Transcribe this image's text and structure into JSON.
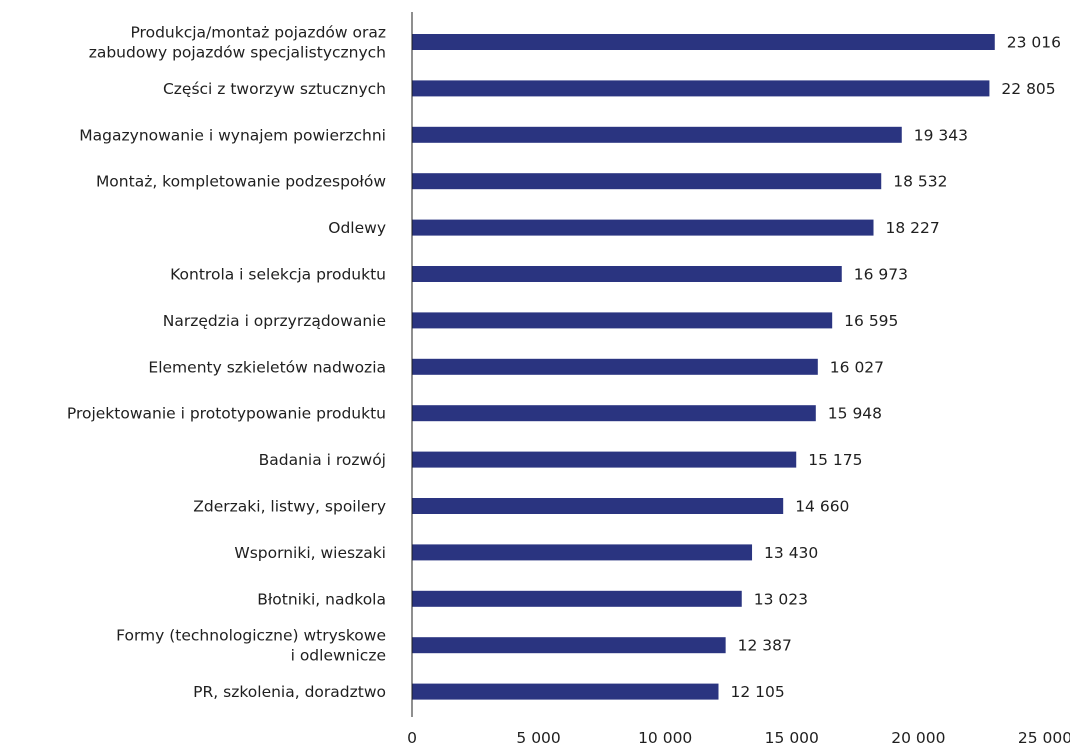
{
  "chart_data": {
    "type": "bar",
    "orientation": "horizontal",
    "categories": [
      [
        "Produkcja/montaż pojazdów oraz",
        "zabudowy pojazdów specjalistycznych"
      ],
      [
        "Części z tworzyw sztucznych"
      ],
      [
        "Magazynowanie i wynajem powierzchni"
      ],
      [
        "Montaż, kompletowanie podzespołów"
      ],
      [
        "Odlewy"
      ],
      [
        "Kontrola i selekcja produktu"
      ],
      [
        "Narzędzia i oprzyrządowanie"
      ],
      [
        "Elementy szkieletów nadwozia"
      ],
      [
        "Projektowanie i prototypowanie produktu"
      ],
      [
        "Badania i rozwój"
      ],
      [
        "Zderzaki, listwy, spoilery"
      ],
      [
        "Wsporniki, wieszaki"
      ],
      [
        "Błotniki, nadkola"
      ],
      [
        "Formy (technologiczne) wtryskowe",
        "i odlewnicze"
      ],
      [
        "PR, szkolenia, doradztwo"
      ]
    ],
    "values": [
      23016,
      22805,
      19343,
      18532,
      18227,
      16973,
      16595,
      16027,
      15948,
      15175,
      14660,
      13430,
      13023,
      12387,
      12105
    ],
    "value_labels": [
      "23 016",
      "22 805",
      "19 343",
      "18 532",
      "18 227",
      "16 973",
      "16 595",
      "16 027",
      "15 948",
      "15 175",
      "14 660",
      "13 430",
      "13 023",
      "12 387",
      "12 105"
    ],
    "xlim": [
      0,
      25000
    ],
    "xticks": [
      0,
      5000,
      10000,
      15000,
      20000,
      25000
    ],
    "xtick_labels": [
      "0",
      "5 000",
      "10 000",
      "15 000",
      "20 000",
      "25 000"
    ],
    "grid": false,
    "bar_color": "#2a3480",
    "title": "",
    "xlabel": "",
    "ylabel": ""
  }
}
